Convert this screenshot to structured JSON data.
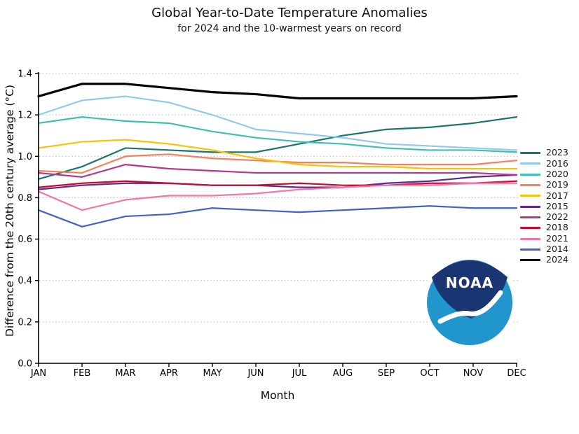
{
  "chart_data": {
    "type": "line",
    "title": "Global Year-to-Date Temperature Anomalies",
    "subtitle": "for 2024 and the 10-warmest years on record",
    "xlabel": "Month",
    "ylabel": "Difference from the 20th century average (°C)",
    "categories": [
      "JAN",
      "FEB",
      "MAR",
      "APR",
      "MAY",
      "JUN",
      "JUL",
      "AUG",
      "SEP",
      "OCT",
      "NOV",
      "DEC"
    ],
    "ylim": [
      0.0,
      1.4
    ],
    "y_ticks": [
      "0.0",
      "0.2",
      "0.4",
      "0.6",
      "0.8",
      "1.0",
      "1.2",
      "1.4"
    ],
    "grid": {
      "horizontal": true,
      "style": "dashed",
      "color": "#c5c5c5"
    },
    "legend_position": "right",
    "series": [
      {
        "name": "2023",
        "color": "#1c756d",
        "width": 2.2,
        "values": [
          0.89,
          0.95,
          1.04,
          1.03,
          1.02,
          1.02,
          1.06,
          1.1,
          1.13,
          1.14,
          1.16,
          1.19
        ]
      },
      {
        "name": "2016",
        "color": "#93c9ef",
        "width": 2.2,
        "values": [
          1.2,
          1.27,
          1.29,
          1.26,
          1.2,
          1.13,
          1.11,
          1.09,
          1.06,
          1.05,
          1.04,
          1.03
        ]
      },
      {
        "name": "2020",
        "color": "#3fbfb1",
        "width": 2.2,
        "values": [
          1.16,
          1.19,
          1.17,
          1.16,
          1.12,
          1.09,
          1.07,
          1.06,
          1.04,
          1.03,
          1.03,
          1.02
        ]
      },
      {
        "name": "2019",
        "color": "#f5815c",
        "width": 2.2,
        "values": [
          0.93,
          0.92,
          1.0,
          1.01,
          0.99,
          0.98,
          0.97,
          0.97,
          0.96,
          0.96,
          0.96,
          0.98
        ]
      },
      {
        "name": "2017",
        "color": "#f5c40a",
        "width": 2.2,
        "values": [
          1.04,
          1.07,
          1.08,
          1.06,
          1.03,
          0.99,
          0.96,
          0.95,
          0.95,
          0.94,
          0.94,
          0.94
        ]
      },
      {
        "name": "2015",
        "color": "#5b2c8d",
        "width": 2.2,
        "values": [
          0.84,
          0.86,
          0.87,
          0.87,
          0.86,
          0.86,
          0.85,
          0.85,
          0.87,
          0.88,
          0.9,
          0.91
        ]
      },
      {
        "name": "2022",
        "color": "#b23a8e",
        "width": 2.2,
        "values": [
          0.92,
          0.9,
          0.96,
          0.94,
          0.93,
          0.92,
          0.92,
          0.92,
          0.92,
          0.92,
          0.92,
          0.91
        ]
      },
      {
        "name": "2018",
        "color": "#c20e32",
        "width": 2.2,
        "values": [
          0.85,
          0.87,
          0.88,
          0.87,
          0.86,
          0.86,
          0.87,
          0.86,
          0.86,
          0.87,
          0.87,
          0.88
        ]
      },
      {
        "name": "2021",
        "color": "#f177aa",
        "width": 2.2,
        "values": [
          0.83,
          0.74,
          0.79,
          0.81,
          0.81,
          0.82,
          0.84,
          0.85,
          0.86,
          0.86,
          0.87,
          0.87
        ]
      },
      {
        "name": "2014",
        "color": "#3f63c8",
        "width": 2.2,
        "values": [
          0.74,
          0.66,
          0.71,
          0.72,
          0.75,
          0.74,
          0.73,
          0.74,
          0.75,
          0.76,
          0.75,
          0.75
        ]
      },
      {
        "name": "2024",
        "color": "#000000",
        "width": 3.2,
        "values": [
          1.29,
          1.35,
          1.35,
          1.33,
          1.31,
          1.3,
          1.28,
          1.28,
          1.28,
          1.28,
          1.28,
          1.29
        ]
      }
    ]
  },
  "logo": {
    "text": "NOAA",
    "dark_blue": "#1a3672",
    "light_blue": "#2196cd"
  }
}
